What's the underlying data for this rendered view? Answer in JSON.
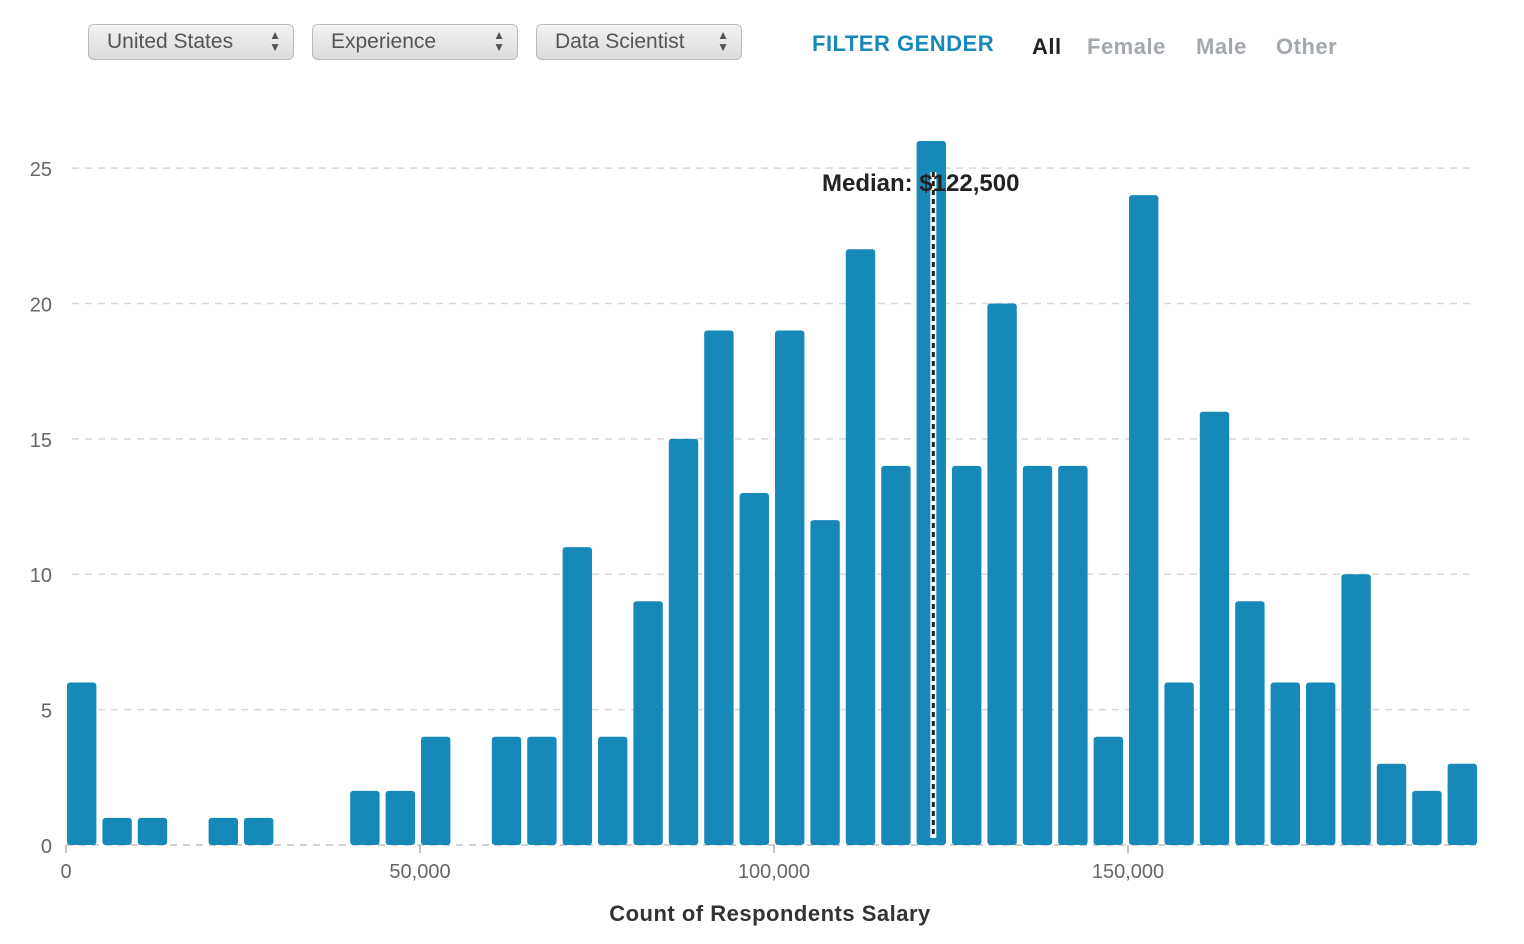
{
  "controls": {
    "country": "United States",
    "group_by": "Experience",
    "role": "Data Scientist"
  },
  "gender_filter": {
    "heading": "FILTER GENDER",
    "options": [
      "All",
      "Female",
      "Male",
      "Other"
    ],
    "active": "All"
  },
  "chart_data": {
    "type": "bar",
    "subtype": "histogram",
    "xlabel": "Count of Respondents Salary",
    "ylabel": "",
    "bin_width": 5000,
    "x": [
      0,
      5000,
      10000,
      20000,
      25000,
      40000,
      45000,
      50000,
      60000,
      65000,
      70000,
      75000,
      80000,
      85000,
      90000,
      95000,
      100000,
      105000,
      110000,
      115000,
      120000,
      125000,
      130000,
      135000,
      140000,
      145000,
      150000,
      155000,
      160000,
      165000,
      170000,
      175000,
      180000,
      185000,
      190000,
      195000
    ],
    "values": [
      6,
      1,
      1,
      1,
      1,
      2,
      2,
      4,
      4,
      4,
      11,
      4,
      9,
      15,
      19,
      13,
      19,
      12,
      22,
      14,
      26,
      14,
      20,
      14,
      14,
      4,
      24,
      6,
      16,
      9,
      6,
      6,
      10,
      3,
      2,
      3
    ],
    "xlim": [
      0,
      200000
    ],
    "ylim": [
      0,
      26
    ],
    "xticks": [
      0,
      50000,
      100000,
      150000
    ],
    "xtick_labels": [
      "0",
      "50,000",
      "100,000",
      "150,000"
    ],
    "yticks": [
      0,
      5,
      10,
      15,
      20,
      25
    ],
    "ytick_labels": [
      "0",
      "5",
      "10",
      "15",
      "20",
      "25"
    ],
    "grid": "horizontal dashed",
    "bar_color": "#1789b9",
    "median": {
      "value": 122500,
      "label": "Median: $122,500"
    }
  }
}
